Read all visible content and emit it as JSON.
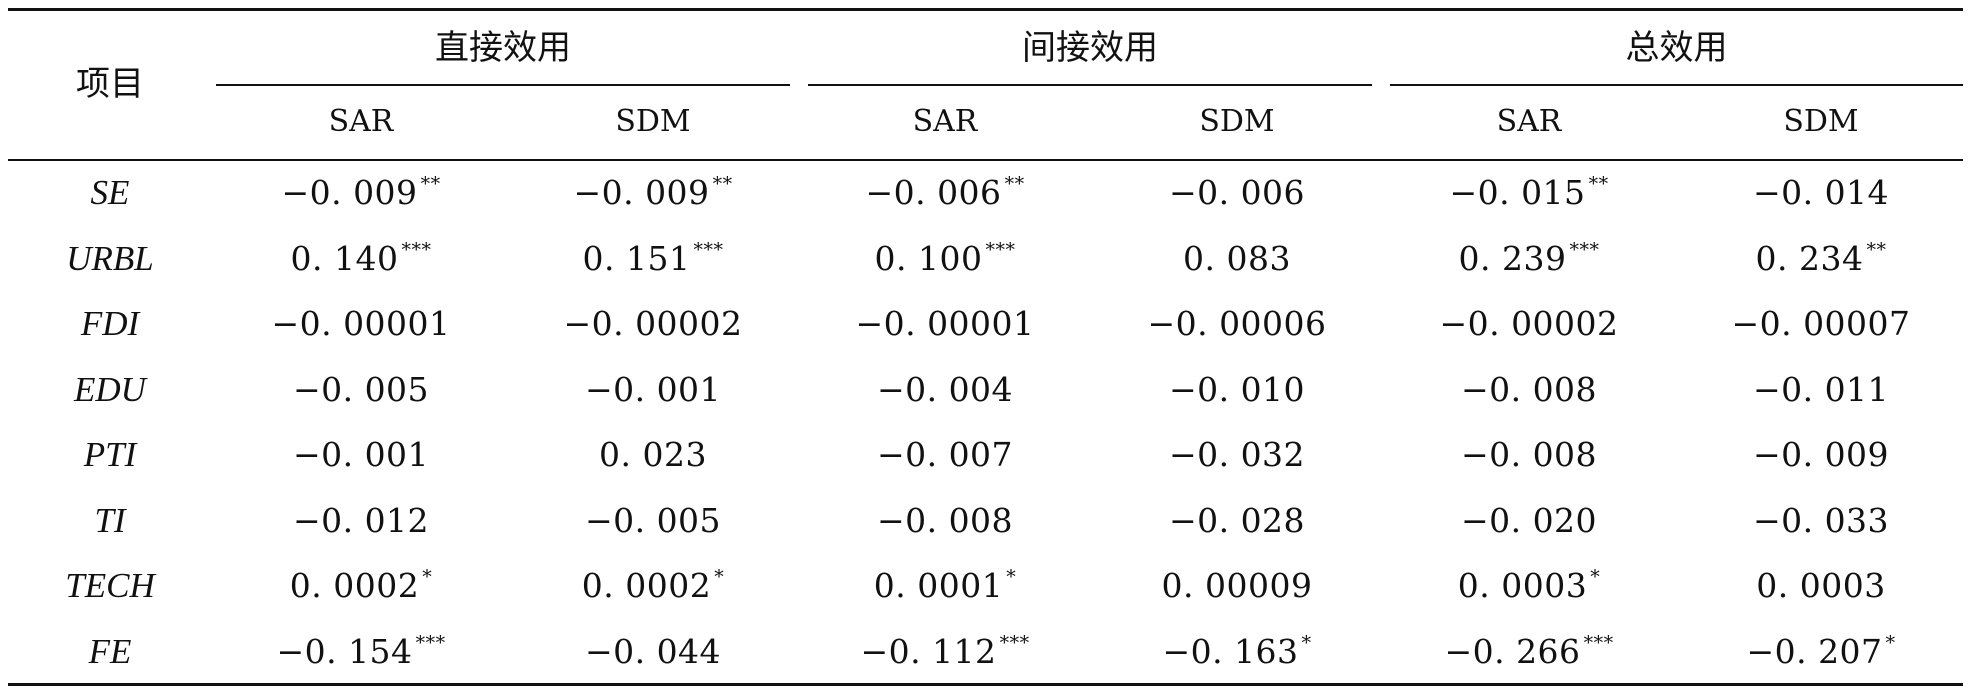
{
  "header": {
    "row_label": "项目",
    "groups": [
      "直接效用",
      "间接效用",
      "总效用"
    ],
    "models": [
      "SAR",
      "SDM",
      "SAR",
      "SDM",
      "SAR",
      "SDM"
    ]
  },
  "rows": [
    {
      "name": "SE",
      "cells": [
        {
          "v": "−0. 009",
          "s": "**"
        },
        {
          "v": "−0. 009",
          "s": "**"
        },
        {
          "v": "−0. 006",
          "s": "**"
        },
        {
          "v": "−0. 006",
          "s": ""
        },
        {
          "v": "−0. 015",
          "s": "**"
        },
        {
          "v": "−0. 014",
          "s": ""
        }
      ]
    },
    {
      "name": "URBL",
      "cells": [
        {
          "v": "0. 140",
          "s": "***"
        },
        {
          "v": "0. 151",
          "s": "***"
        },
        {
          "v": "0. 100",
          "s": "***"
        },
        {
          "v": "0. 083",
          "s": ""
        },
        {
          "v": "0. 239",
          "s": "***"
        },
        {
          "v": "0. 234",
          "s": "**"
        }
      ]
    },
    {
      "name": "FDI",
      "cells": [
        {
          "v": "−0. 00001",
          "s": ""
        },
        {
          "v": "−0. 00002",
          "s": ""
        },
        {
          "v": "−0. 00001",
          "s": ""
        },
        {
          "v": "−0. 00006",
          "s": ""
        },
        {
          "v": "−0. 00002",
          "s": ""
        },
        {
          "v": "−0. 00007",
          "s": ""
        }
      ]
    },
    {
      "name": "EDU",
      "cells": [
        {
          "v": "−0. 005",
          "s": ""
        },
        {
          "v": "−0. 001",
          "s": ""
        },
        {
          "v": "−0. 004",
          "s": ""
        },
        {
          "v": "−0. 010",
          "s": ""
        },
        {
          "v": "−0. 008",
          "s": ""
        },
        {
          "v": "−0. 011",
          "s": ""
        }
      ]
    },
    {
      "name": "PTI",
      "cells": [
        {
          "v": "−0. 001",
          "s": ""
        },
        {
          "v": "0. 023",
          "s": ""
        },
        {
          "v": "−0. 007",
          "s": ""
        },
        {
          "v": "−0. 032",
          "s": ""
        },
        {
          "v": "−0. 008",
          "s": ""
        },
        {
          "v": "−0. 009",
          "s": ""
        }
      ]
    },
    {
      "name": "TI",
      "cells": [
        {
          "v": "−0. 012",
          "s": ""
        },
        {
          "v": "−0. 005",
          "s": ""
        },
        {
          "v": "−0. 008",
          "s": ""
        },
        {
          "v": "−0. 028",
          "s": ""
        },
        {
          "v": "−0. 020",
          "s": ""
        },
        {
          "v": "−0. 033",
          "s": ""
        }
      ]
    },
    {
      "name": "TECH",
      "cells": [
        {
          "v": "0. 0002",
          "s": "*"
        },
        {
          "v": "0. 0002",
          "s": "*"
        },
        {
          "v": "0. 0001",
          "s": "*"
        },
        {
          "v": "0. 00009",
          "s": ""
        },
        {
          "v": "0. 0003",
          "s": "*"
        },
        {
          "v": "0. 0003",
          "s": ""
        }
      ]
    },
    {
      "name": "FE",
      "cells": [
        {
          "v": "−0. 154",
          "s": "***"
        },
        {
          "v": "−0. 044",
          "s": ""
        },
        {
          "v": "−0. 112",
          "s": "***"
        },
        {
          "v": "−0. 163",
          "s": "*"
        },
        {
          "v": "−0. 266",
          "s": "***"
        },
        {
          "v": "−0. 207",
          "s": "*"
        }
      ]
    }
  ]
}
